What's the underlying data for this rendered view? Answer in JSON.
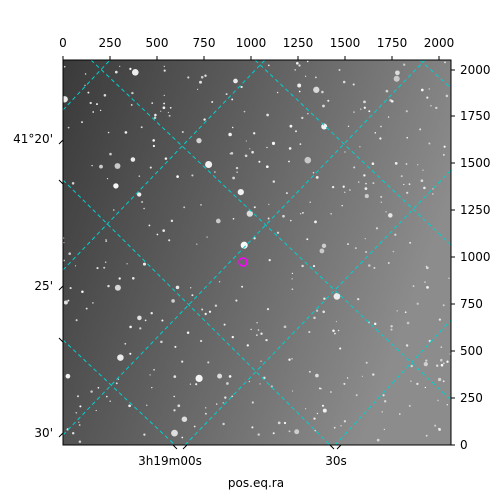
{
  "figure": {
    "xlabel": "pos.eq.ra",
    "top_pixel_ticks": [
      "0",
      "250",
      "500",
      "750",
      "1000",
      "1250",
      "1500",
      "1750",
      "2000"
    ],
    "right_pixel_ticks": [
      "0",
      "250",
      "500",
      "750",
      "1000",
      "1250",
      "1500",
      "1750",
      "2000"
    ],
    "left_dec_ticks": [
      "41°20'",
      "25'",
      "30'"
    ],
    "bottom_ra_ticks": [
      "3h19m00s",
      "30s"
    ],
    "grid_color": "#00d0d0",
    "marker_color": "#ff00ff",
    "image_colormap": "gray"
  }
}
